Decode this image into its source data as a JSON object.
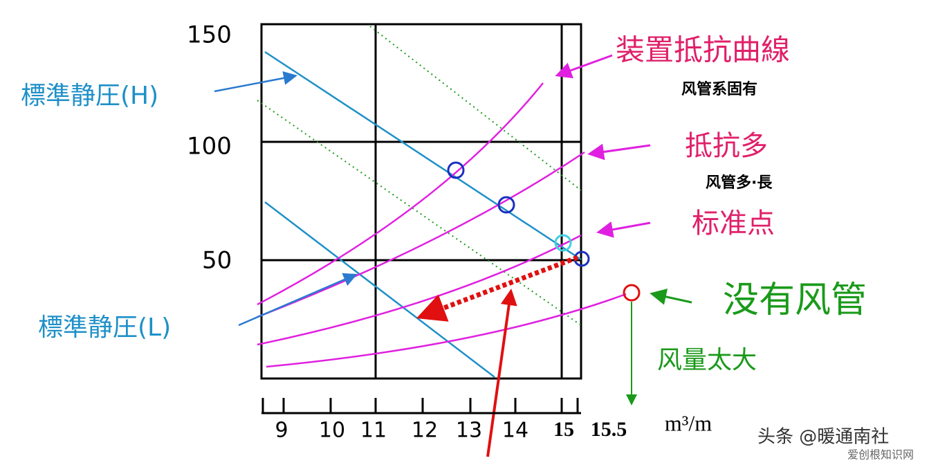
{
  "y_axis": {
    "ticks": [
      "150",
      "100",
      "50"
    ]
  },
  "x_axis": {
    "ticks": [
      "9",
      "10",
      "11",
      "12",
      "13",
      "14",
      "15",
      "15.5"
    ],
    "unit": "m³/m"
  },
  "labels": {
    "static_h": "標準静圧(H)",
    "static_l": "標準静圧(L)",
    "device_curve": "装置抵抗曲線",
    "device_note": "风管系固有",
    "high_resistance": "抵抗多",
    "high_note": "风管多·長",
    "standard_point": "标准点",
    "no_duct": "没有风管",
    "too_much_air": "风量太大"
  },
  "watermark": {
    "main": "头条 @暖通南社",
    "sub": "爱创根知识网"
  }
}
